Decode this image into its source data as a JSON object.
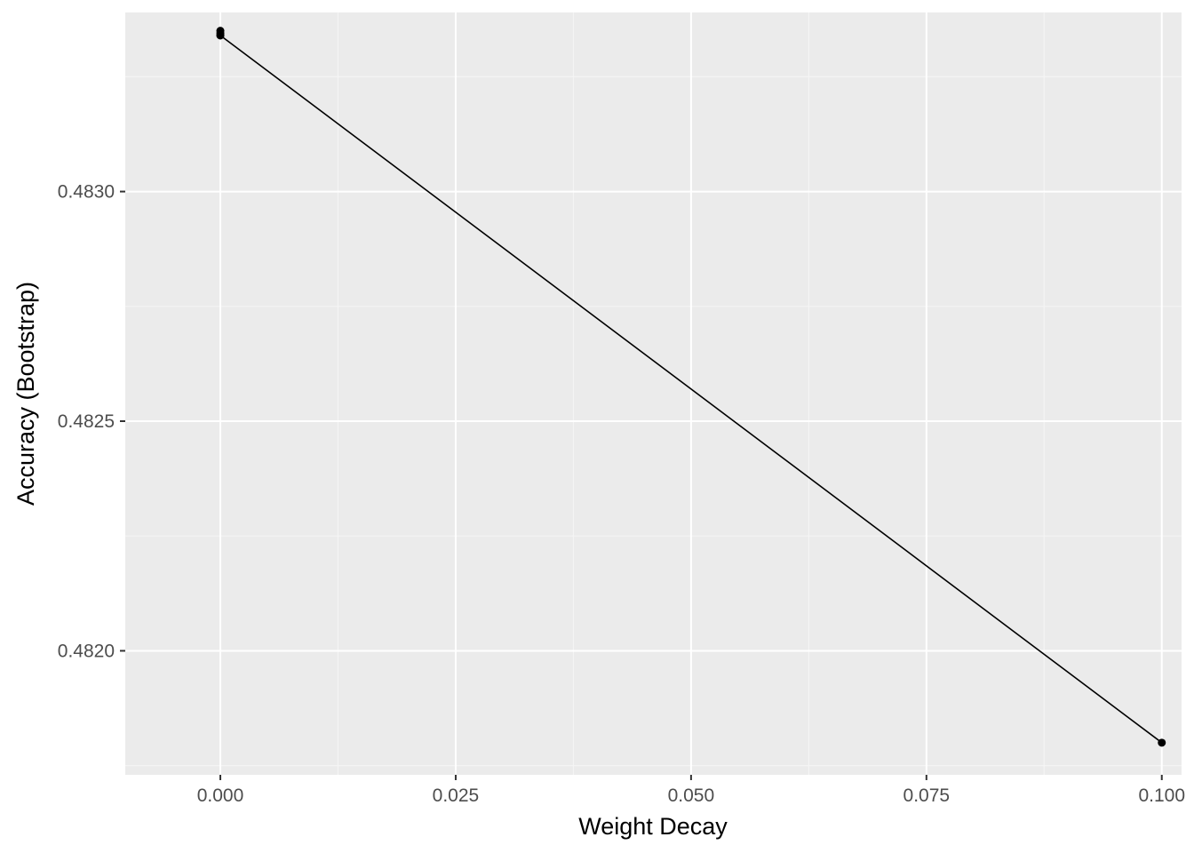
{
  "chart_data": {
    "type": "line",
    "title": "",
    "xlabel": "Weight Decay",
    "ylabel": "Accuracy (Bootstrap)",
    "xlim": [
      -0.0101,
      0.1021
    ],
    "ylim": [
      0.48173,
      0.48339
    ],
    "x_ticks": [
      0.0,
      0.025,
      0.05,
      0.075,
      0.1
    ],
    "x_tick_labels": [
      "0.000",
      "0.025",
      "0.050",
      "0.075",
      "0.100"
    ],
    "y_ticks": [
      0.482,
      0.4825,
      0.483
    ],
    "y_tick_labels": [
      "0.4820",
      "0.4825",
      "0.4830"
    ],
    "grid": true,
    "legend": "none",
    "colors": {
      "panel_background": "#ebebeb",
      "grid_major": "#ffffff",
      "grid_minor": "#f5f5f5",
      "line": "#000000",
      "point": "#000000"
    },
    "series": [
      {
        "x": [
          0.0,
          0.0,
          0.0,
          0.0,
          0.1
        ],
        "y": [
          0.48335,
          0.48334,
          0.483345,
          0.48334,
          0.4818
        ]
      }
    ]
  }
}
